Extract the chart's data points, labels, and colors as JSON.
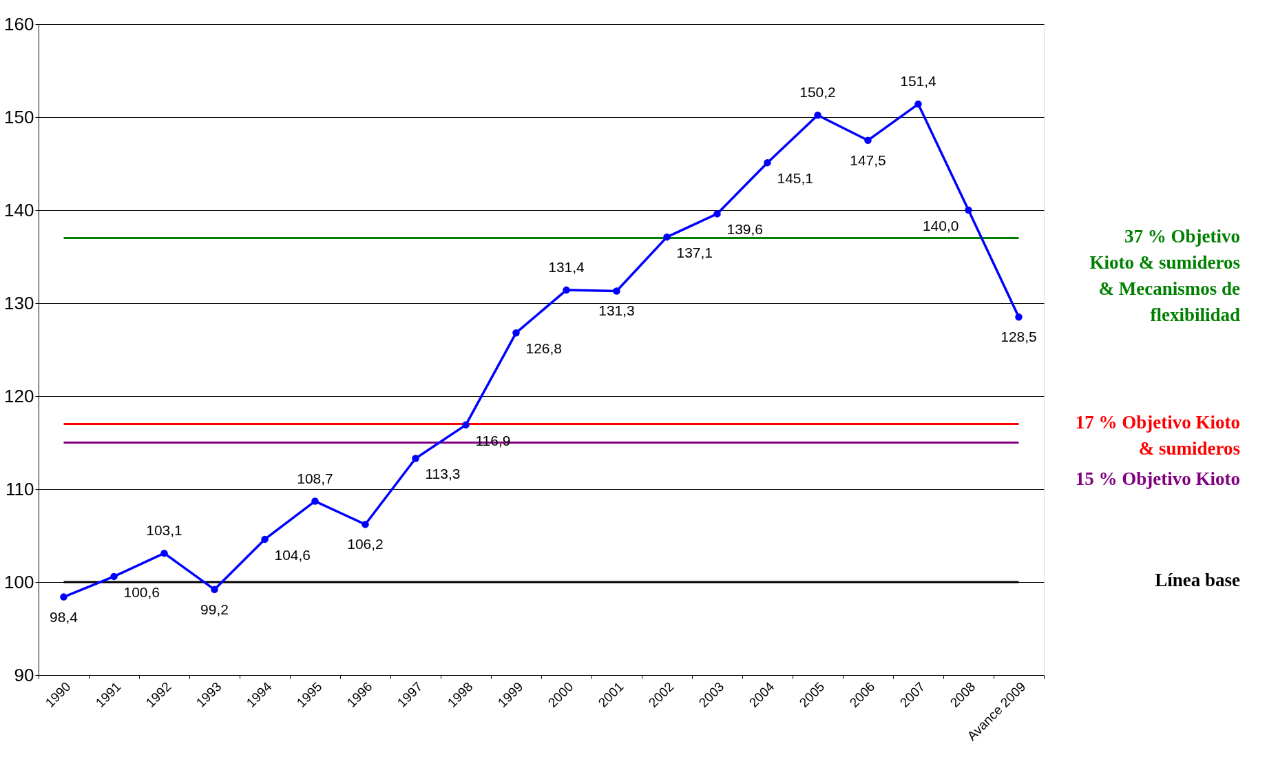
{
  "chart_data": {
    "type": "line",
    "categories": [
      "1990",
      "1991",
      "1992",
      "1993",
      "1994",
      "1995",
      "1996",
      "1997",
      "1998",
      "1999",
      "2000",
      "2001",
      "2002",
      "2003",
      "2004",
      "2005",
      "2006",
      "2007",
      "2008",
      "Avance 2009"
    ],
    "series": [
      {
        "color": "#0000ff",
        "values": [
          98.4,
          100.6,
          103.1,
          99.2,
          104.6,
          108.7,
          106.2,
          113.3,
          116.9,
          126.8,
          131.4,
          131.3,
          137.1,
          139.6,
          145.1,
          150.2,
          147.5,
          151.4,
          140.0,
          128.5
        ],
        "value_labels": [
          "98,4",
          "100,6",
          "103,1",
          "99,2",
          "104,6",
          "108,7",
          "106,2",
          "113,3",
          "116,9",
          "126,8",
          "131,4",
          "131,3",
          "137,1",
          "139,6",
          "145,1",
          "150,2",
          "147,5",
          "151,4",
          "140,0",
          "128,5"
        ]
      }
    ],
    "ylim": [
      90,
      160
    ],
    "yticks": [
      90,
      100,
      110,
      120,
      130,
      140,
      150,
      160
    ],
    "grid": "y",
    "marker": "circle",
    "line_style": "solid",
    "ref_lines": [
      {
        "axis": "y",
        "value": 137,
        "label": "37 % Objetivo\nKioto & sumideros\n& Mecanismos de\nflexibilidad",
        "color": "#008000"
      },
      {
        "axis": "y",
        "value": 117,
        "label": "17 % Objetivo Kioto\n& sumideros",
        "color": "#ff0000"
      },
      {
        "axis": "y",
        "value": 115,
        "label": "15 % Objetivo Kioto",
        "color": "#800080"
      },
      {
        "axis": "y",
        "value": 100,
        "label": "Línea base",
        "color": "#000000"
      }
    ]
  }
}
